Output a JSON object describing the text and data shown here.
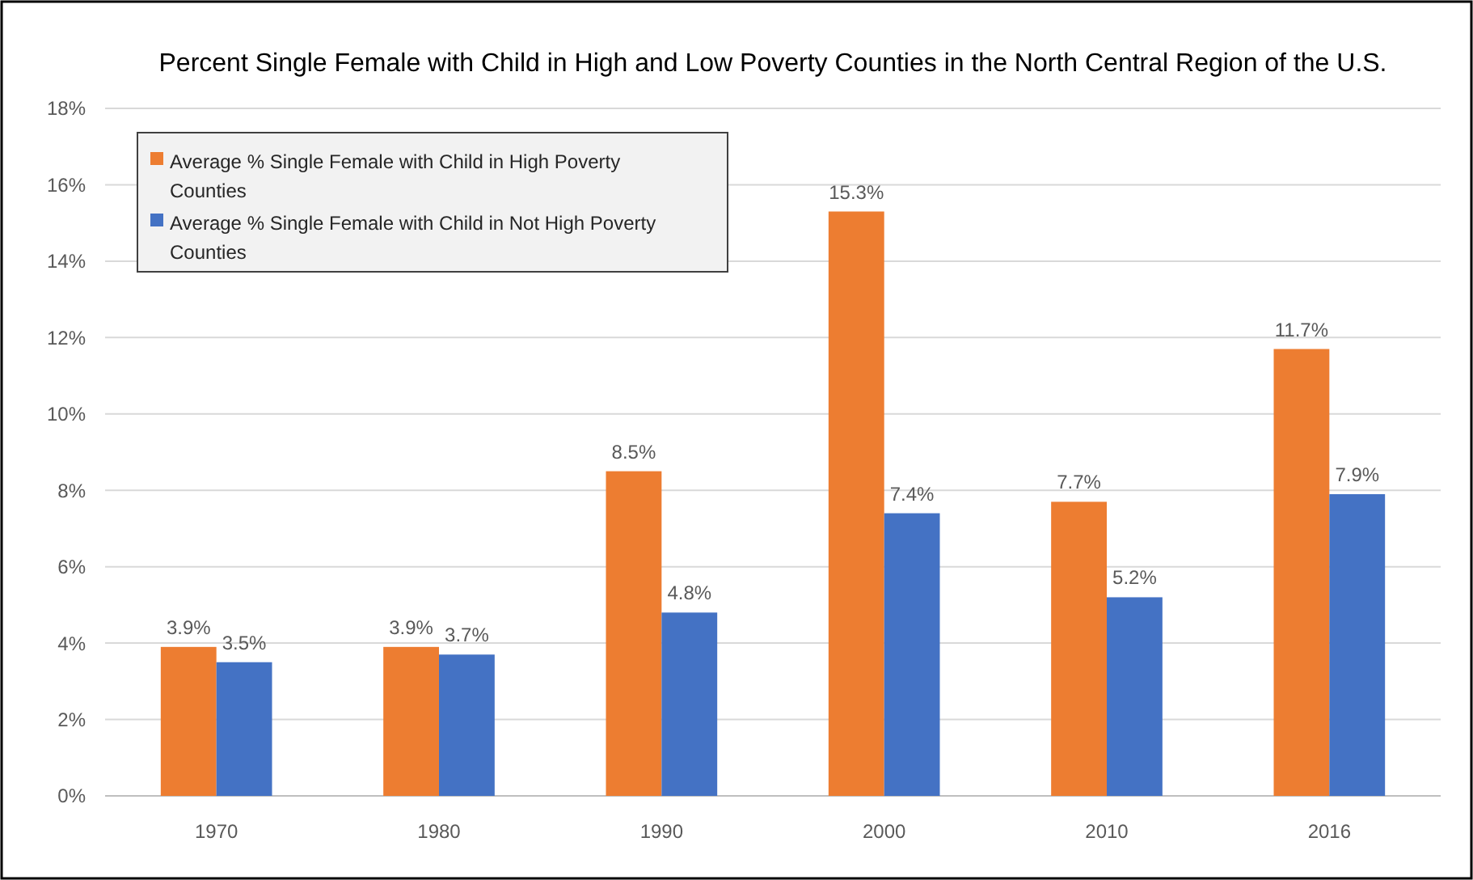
{
  "chart_data": {
    "type": "bar",
    "title": "Percent Single Female with Child in High and Low Poverty Counties in the North Central Region of the U.S.",
    "categories": [
      "1970",
      "1980",
      "1990",
      "2000",
      "2010",
      "2016"
    ],
    "series": [
      {
        "name": "Average % Single Female with Child in High Poverty Counties",
        "color": "#ed7d31",
        "values": [
          3.9,
          3.9,
          8.5,
          15.3,
          7.7,
          11.7
        ],
        "value_labels": [
          "3.9%",
          "3.9%",
          "8.5%",
          "15.3%",
          "7.7%",
          "11.7%"
        ]
      },
      {
        "name": "Average % Single Female with Child in Not High Poverty Counties",
        "color": "#4472c4",
        "values": [
          3.5,
          3.7,
          4.8,
          7.4,
          5.2,
          7.9
        ],
        "value_labels": [
          "3.5%",
          "3.7%",
          "4.8%",
          "7.4%",
          "5.2%",
          "7.9%"
        ]
      }
    ],
    "ylim": [
      0,
      18
    ],
    "yticks": [
      {
        "value": 0,
        "label": "0%"
      },
      {
        "value": 2,
        "label": "2%"
      },
      {
        "value": 4,
        "label": "4%"
      },
      {
        "value": 6,
        "label": "6%"
      },
      {
        "value": 8,
        "label": "8%"
      },
      {
        "value": 10,
        "label": "10%"
      },
      {
        "value": 12,
        "label": "12%"
      },
      {
        "value": 14,
        "label": "14%"
      },
      {
        "value": 16,
        "label": "16%"
      },
      {
        "value": 18,
        "label": "18%"
      }
    ],
    "grid": "y",
    "legend": "top left"
  }
}
